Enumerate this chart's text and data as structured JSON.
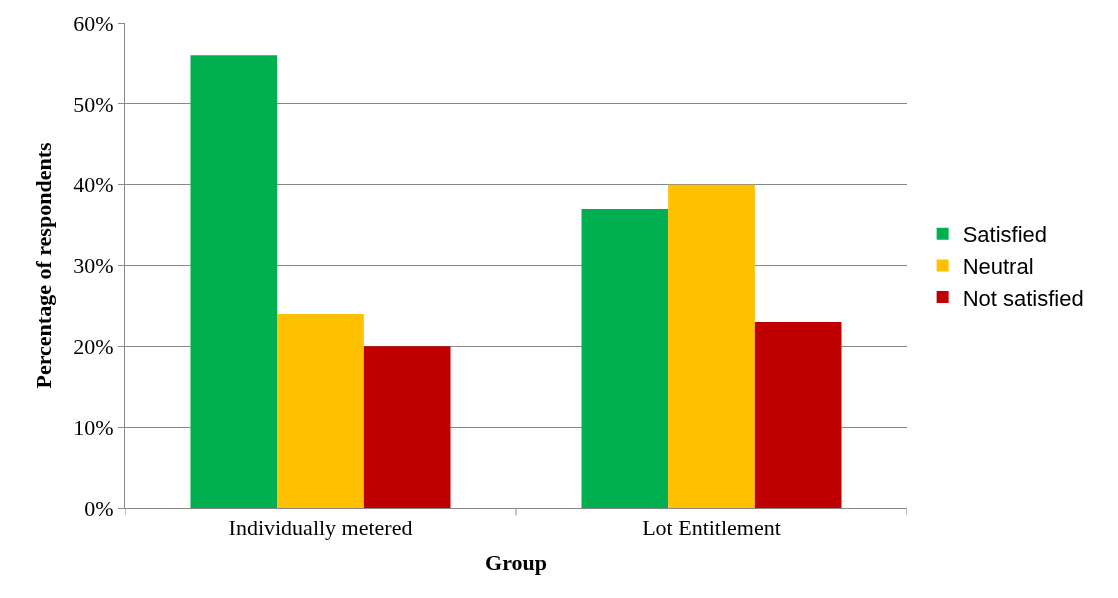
{
  "chart_data": {
    "type": "bar",
    "xlabel": "Group",
    "ylabel": "Percentage of respondents",
    "categories": [
      "Individually metered",
      "Lot Entitlement"
    ],
    "series": [
      {
        "name": "Satisfied",
        "color": "#00b050",
        "values": [
          56,
          37
        ]
      },
      {
        "name": "Neutral",
        "color": "#ffc000",
        "values": [
          24,
          40
        ]
      },
      {
        "name": "Not satisfied",
        "color": "#c00000",
        "values": [
          20,
          23
        ]
      }
    ],
    "ylim": [
      0,
      60
    ],
    "yticks": [
      {
        "value": 0,
        "label": "0%"
      },
      {
        "value": 10,
        "label": "10%"
      },
      {
        "value": 20,
        "label": "20%"
      },
      {
        "value": 30,
        "label": "30%"
      },
      {
        "value": 40,
        "label": "40%"
      },
      {
        "value": 50,
        "label": "50%"
      },
      {
        "value": 60,
        "label": "60%"
      }
    ],
    "grid": "y",
    "legend": "right"
  }
}
